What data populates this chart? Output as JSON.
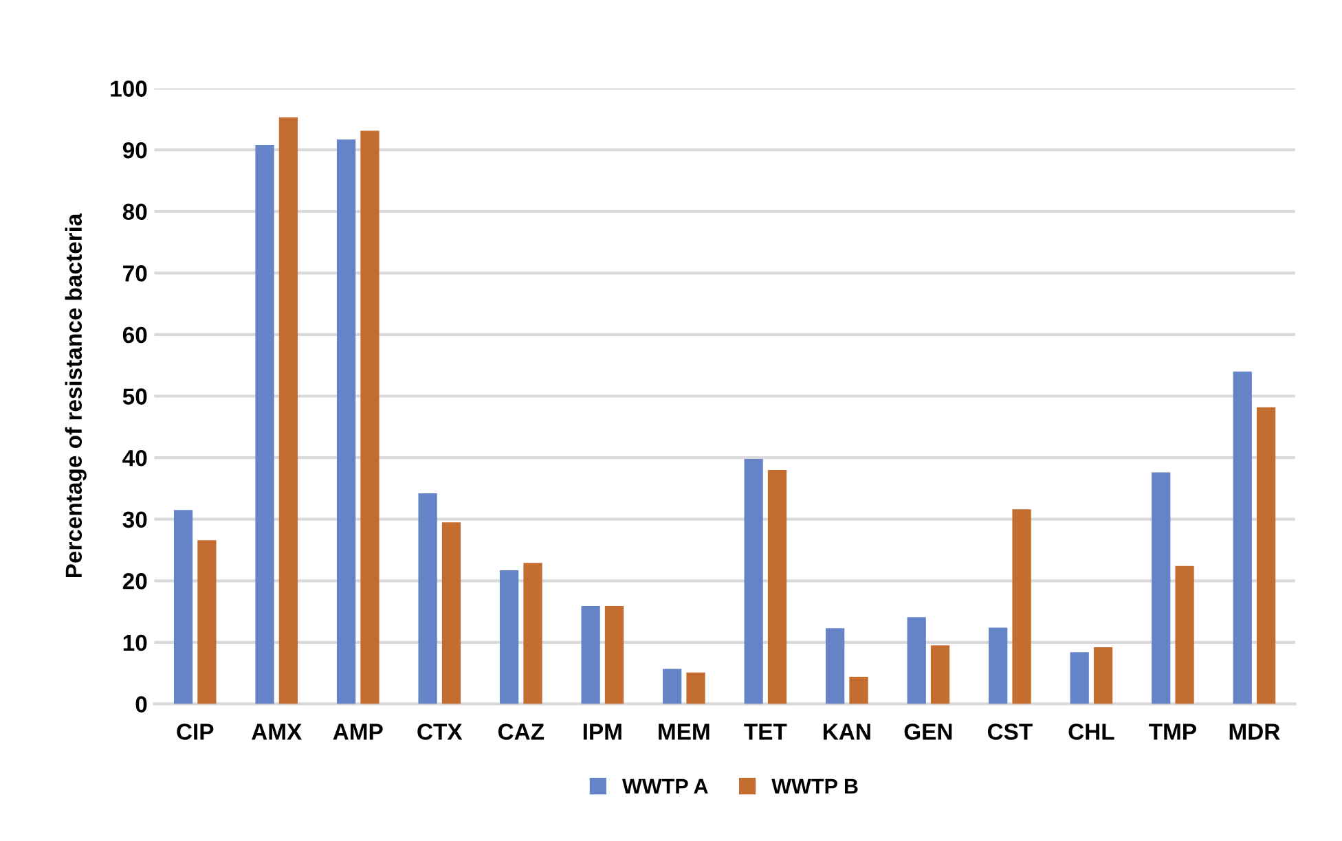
{
  "chart_data": {
    "type": "bar",
    "ylabel": "Percentage of resistance bacteria",
    "categories": [
      "CIP",
      "AMX",
      "AMP",
      "CTX",
      "CAZ",
      "IPM",
      "MEM",
      "TET",
      "KAN",
      "GEN",
      "CST",
      "CHL",
      "TMP",
      "MDR"
    ],
    "series": [
      {
        "name": "WWTP A",
        "color": "#6584c8",
        "values": [
          31.5,
          90.8,
          91.7,
          34.2,
          21.7,
          15.9,
          5.7,
          39.8,
          12.3,
          14.1,
          12.4,
          8.4,
          37.6,
          54.0
        ]
      },
      {
        "name": "WWTP B",
        "color": "#c46d31",
        "values": [
          26.6,
          95.3,
          93.1,
          29.5,
          22.9,
          15.9,
          5.1,
          38.0,
          4.4,
          9.5,
          31.6,
          9.2,
          22.4,
          48.2
        ]
      }
    ],
    "ylim": [
      0,
      100
    ],
    "yticks": [
      0,
      10,
      20,
      30,
      40,
      50,
      60,
      70,
      80,
      90,
      100
    ],
    "grid": "y",
    "legend": "bottom"
  }
}
